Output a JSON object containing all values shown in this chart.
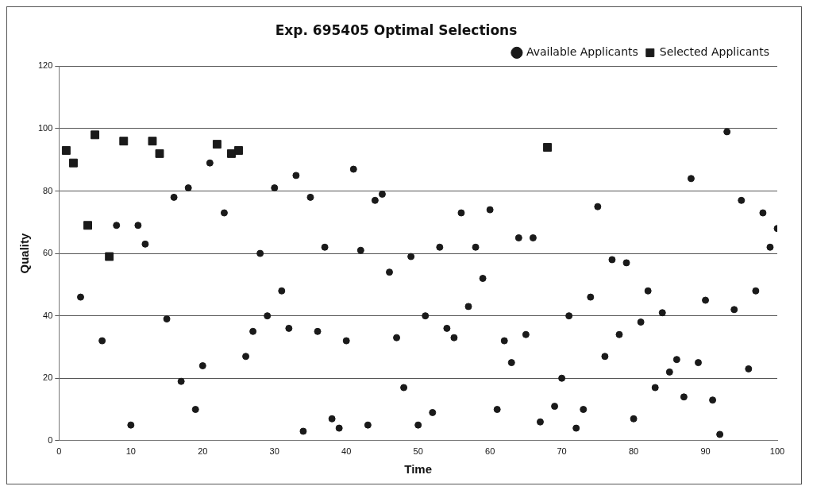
{
  "chart_data": {
    "type": "scatter",
    "title": "Exp. 695405 Optimal Selections",
    "xlabel": "Time",
    "ylabel": "Quality",
    "xlim": [
      0,
      100
    ],
    "xticks": [
      0,
      10,
      20,
      30,
      40,
      50,
      60,
      70,
      80,
      90,
      100
    ],
    "ylim": [
      0,
      120
    ],
    "yticks": [
      0,
      20,
      40,
      60,
      80,
      100,
      120
    ],
    "grid": "y",
    "legend": "top right",
    "series": [
      {
        "name": "Available Applicants",
        "color": "#1a1a1a",
        "marker": "circle",
        "x": [
          3,
          6,
          8,
          10,
          11,
          12,
          15,
          16,
          17,
          18,
          19,
          20,
          21,
          23,
          26,
          27,
          28,
          29,
          30,
          31,
          32,
          33,
          34,
          35,
          36,
          37,
          38,
          39,
          40,
          41,
          42,
          43,
          44,
          45,
          46,
          47,
          48,
          49,
          50,
          51,
          52,
          53,
          54,
          55,
          56,
          57,
          58,
          59,
          60,
          61,
          62,
          63,
          64,
          65,
          66,
          67,
          69,
          70,
          71,
          72,
          73,
          74,
          75,
          76,
          77,
          78,
          79,
          80,
          81,
          82,
          83,
          84,
          85,
          86,
          87,
          88,
          89,
          90,
          91,
          92,
          93,
          94,
          95,
          96,
          97,
          98,
          99,
          100
        ],
        "values": [
          46,
          32,
          69,
          5,
          69,
          63,
          39,
          78,
          19,
          81,
          10,
          24,
          89,
          73,
          27,
          35,
          60,
          40,
          81,
          48,
          36,
          85,
          3,
          78,
          35,
          62,
          7,
          4,
          32,
          87,
          61,
          5,
          77,
          79,
          54,
          33,
          17,
          59,
          5,
          40,
          9,
          62,
          36,
          33,
          73,
          43,
          62,
          52,
          74,
          10,
          32,
          25,
          65,
          34,
          65,
          6,
          11,
          20,
          40,
          4,
          10,
          46,
          75,
          27,
          58,
          34,
          57,
          7,
          38,
          48,
          17,
          41,
          22,
          26,
          14,
          84,
          25,
          45,
          13,
          2,
          99,
          42,
          77,
          23,
          48,
          73,
          62,
          68
        ]
      },
      {
        "name": "Selected Applicants",
        "color": "#1a1a1a",
        "marker": "square",
        "x": [
          1,
          2,
          4,
          5,
          7,
          9,
          13,
          14,
          22,
          24,
          25,
          68
        ],
        "values": [
          93,
          89,
          69,
          98,
          59,
          96,
          96,
          92,
          95,
          92,
          93,
          94
        ]
      }
    ]
  }
}
